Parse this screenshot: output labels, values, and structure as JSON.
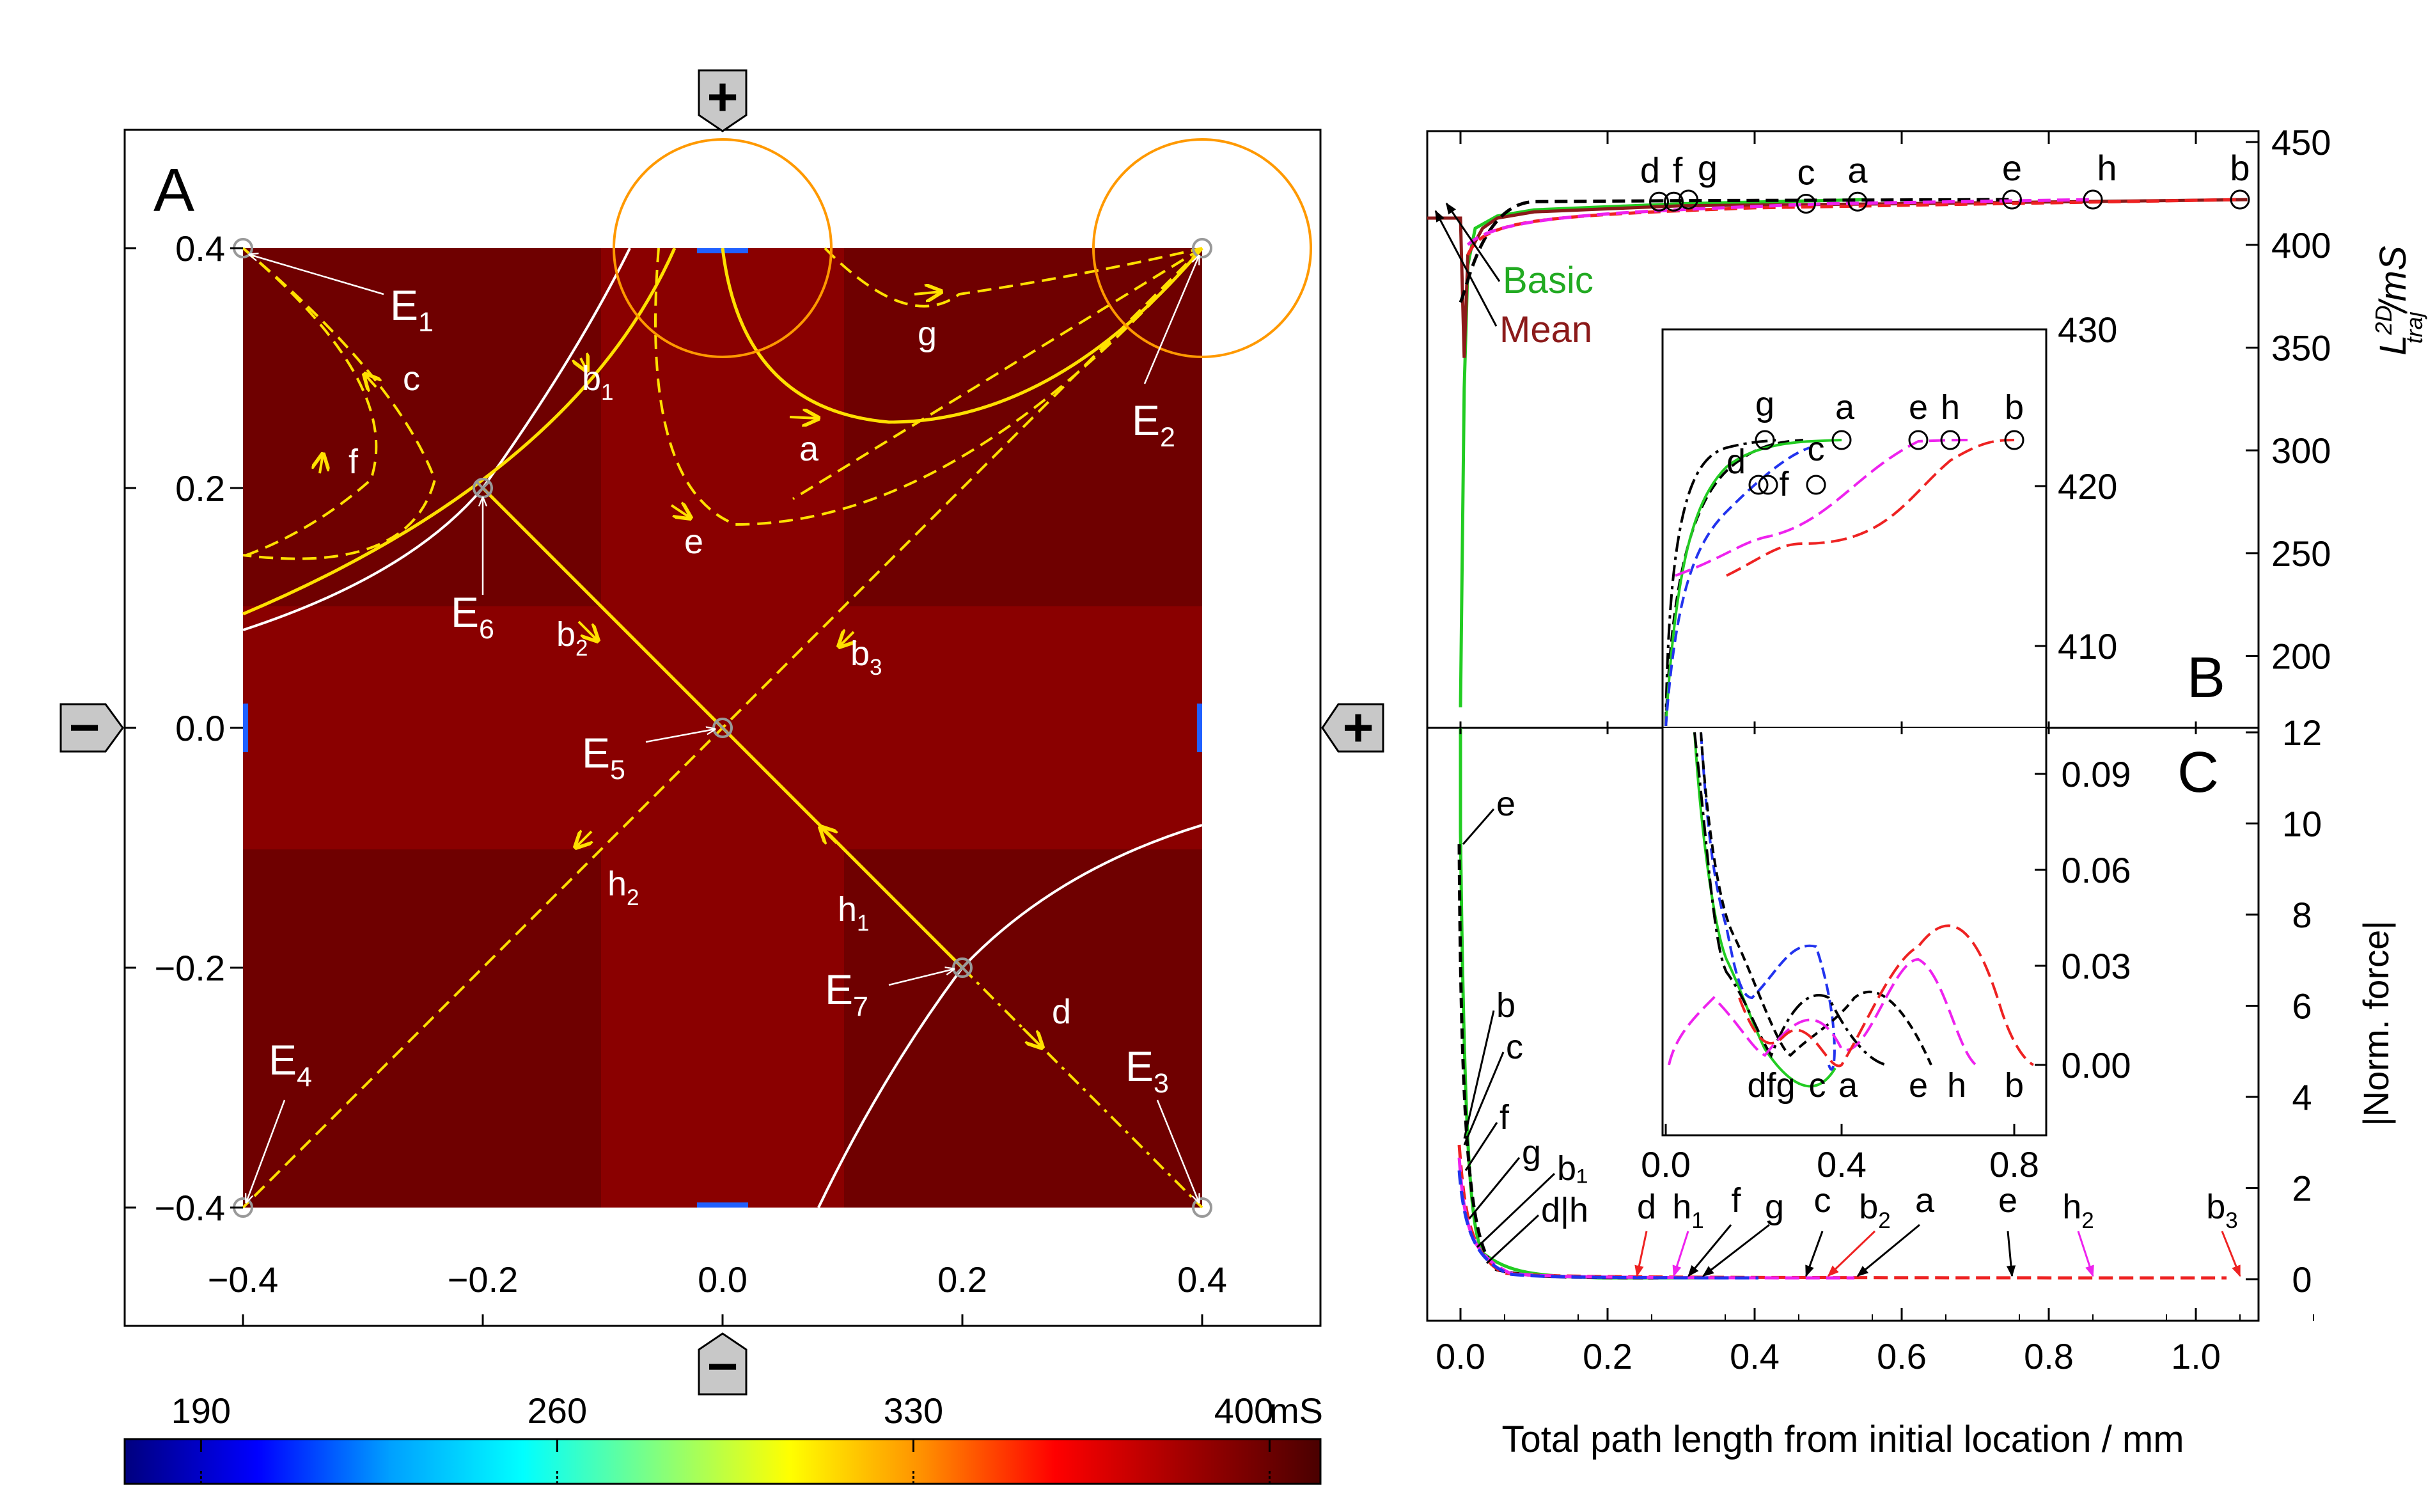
{
  "panel_a": {
    "label": "A",
    "electrode_top": "+",
    "electrode_right": "+",
    "electrode_left": "−",
    "electrode_bottom": "−",
    "x_ticks": [
      "−0.4",
      "−0.2",
      "0.0",
      "0.2",
      "0.4"
    ],
    "y_ticks": [
      "0.4",
      "0.2",
      "0.0",
      "−0.2",
      "−0.4"
    ],
    "points": [
      {
        "id": "E1",
        "main": "E",
        "sub": "1"
      },
      {
        "id": "E2",
        "main": "E",
        "sub": "2"
      },
      {
        "id": "E3",
        "main": "E",
        "sub": "3"
      },
      {
        "id": "E4",
        "main": "E",
        "sub": "4"
      },
      {
        "id": "E5",
        "main": "E",
        "sub": "5"
      },
      {
        "id": "E6",
        "main": "E",
        "sub": "6"
      },
      {
        "id": "E7",
        "main": "E",
        "sub": "7"
      }
    ],
    "trajectory_labels": [
      {
        "id": "a",
        "main": "a",
        "sub": ""
      },
      {
        "id": "b1",
        "main": "b",
        "sub": "1"
      },
      {
        "id": "b2",
        "main": "b",
        "sub": "2"
      },
      {
        "id": "b3",
        "main": "b",
        "sub": "3"
      },
      {
        "id": "c",
        "main": "c",
        "sub": ""
      },
      {
        "id": "d",
        "main": "d",
        "sub": ""
      },
      {
        "id": "e",
        "main": "e",
        "sub": ""
      },
      {
        "id": "f",
        "main": "f",
        "sub": ""
      },
      {
        "id": "g",
        "main": "g",
        "sub": ""
      },
      {
        "id": "h1",
        "main": "h",
        "sub": "1"
      },
      {
        "id": "h2",
        "main": "h",
        "sub": "2"
      }
    ]
  },
  "colorbar": {
    "ticks": [
      "190",
      "260",
      "330",
      "400"
    ],
    "unit": "mS",
    "stops": [
      "#00007f",
      "#0000ff",
      "#00a0ff",
      "#00ffff",
      "#80ff80",
      "#ffff00",
      "#ff9000",
      "#ff0000",
      "#a00000",
      "#4a0000"
    ]
  },
  "panel_b": {
    "label": "B",
    "y_ticks": [
      "200",
      "250",
      "300",
      "350",
      "400",
      "450"
    ],
    "y_axis_title": "L",
    "y_axis_sup": "2D",
    "y_axis_sub": "traj",
    "y_axis_unit": "/mS",
    "legend_basic": "Basic",
    "legend_mean": "Mean",
    "traj_labels": [
      "d",
      "f",
      "g",
      "c",
      "a",
      "e",
      "h",
      "b"
    ],
    "inset": {
      "y_ticks": [
        "410",
        "420",
        "430"
      ],
      "x_ticks": [
        "0.0",
        "0.4",
        "0.8"
      ],
      "traj_labels": [
        "g",
        "a",
        "e",
        "h",
        "b",
        "d",
        "f",
        "c"
      ]
    }
  },
  "panel_c": {
    "label": "C",
    "y_ticks": [
      "0",
      "2",
      "4",
      "6",
      "8",
      "10",
      "12"
    ],
    "y_axis_title": "|Norm. force|",
    "left_labels": [
      "e",
      "b",
      "c",
      "f",
      "g",
      "b₁",
      "d|h"
    ],
    "bottom_labels": [
      {
        "main": "d",
        "sub": ""
      },
      {
        "main": "h",
        "sub": "1"
      },
      {
        "main": "f",
        "sub": ""
      },
      {
        "main": "g",
        "sub": ""
      },
      {
        "main": "c",
        "sub": ""
      },
      {
        "main": "b",
        "sub": "2"
      },
      {
        "main": "a",
        "sub": ""
      },
      {
        "main": "e",
        "sub": ""
      },
      {
        "main": "h",
        "sub": "2"
      },
      {
        "main": "b",
        "sub": "3"
      }
    ],
    "inset": {
      "y_ticks": [
        "0.00",
        "0.03",
        "0.06",
        "0.09"
      ],
      "labels": [
        "dfg",
        "c",
        "a",
        "e",
        "h",
        "b"
      ]
    }
  },
  "x_axis": {
    "ticks": [
      "0.0",
      "0.2",
      "0.4",
      "0.6",
      "0.8",
      "1.0"
    ],
    "title": "Total path length from initial location / mm"
  },
  "colors": {
    "trajectory": "#ffe000",
    "basic": "#22cc22",
    "mean": "#8b1a1a",
    "black": "#000000",
    "red": "#ee2222",
    "blue": "#2233ee",
    "magenta": "#ee22ee",
    "circle": "#ff9900"
  },
  "chart_data": [
    {
      "type": "heatmap",
      "panel": "A",
      "xlim": [
        -0.4,
        0.4
      ],
      "ylim": [
        -0.4,
        0.4
      ],
      "colorbar_range": [
        190,
        400
      ],
      "points": [
        {
          "name": "E1",
          "x": -0.4,
          "y": 0.4
        },
        {
          "name": "E2",
          "x": 0.4,
          "y": 0.4
        },
        {
          "name": "E3",
          "x": 0.4,
          "y": -0.4
        },
        {
          "name": "E4",
          "x": -0.4,
          "y": -0.4
        },
        {
          "name": "E5",
          "x": 0.0,
          "y": 0.0
        },
        {
          "name": "E6",
          "x": -0.2,
          "y": 0.2
        },
        {
          "name": "E7",
          "x": 0.2,
          "y": -0.2
        }
      ]
    },
    {
      "type": "line",
      "panel": "B",
      "xlim": [
        -0.05,
        1.1
      ],
      "ylim": [
        165,
        455
      ],
      "series": [
        {
          "name": "Basic",
          "x": [
            0.0,
            0.005,
            0.01,
            0.02,
            0.05,
            0.1,
            0.3,
            0.55
          ],
          "y": [
            175,
            330,
            390,
            408,
            414,
            417,
            420,
            422
          ]
        },
        {
          "name": "Mean",
          "x": [
            -0.05,
            0.0,
            0.005,
            0.01,
            0.03,
            0.05,
            0.1,
            0.3,
            0.6,
            1.07
          ],
          "y": [
            413,
            413,
            345,
            395,
            408,
            413,
            416,
            419,
            420,
            422
          ]
        }
      ],
      "end_markers": [
        {
          "label": "d",
          "x": 0.27,
          "y": 421
        },
        {
          "label": "f",
          "x": 0.29,
          "y": 421
        },
        {
          "label": "g",
          "x": 0.31,
          "y": 422
        },
        {
          "label": "c",
          "x": 0.47,
          "y": 420
        },
        {
          "label": "a",
          "x": 0.54,
          "y": 421
        },
        {
          "label": "e",
          "x": 0.75,
          "y": 422
        },
        {
          "label": "h",
          "x": 0.86,
          "y": 422
        },
        {
          "label": "b",
          "x": 1.06,
          "y": 422
        }
      ]
    },
    {
      "type": "line",
      "panel": "C",
      "xlim": [
        -0.05,
        1.1
      ],
      "ylim": [
        -0.8,
        14.5
      ],
      "arrows_x": {
        "d": 0.24,
        "h1": 0.29,
        "f": 0.31,
        "g": 0.33,
        "c": 0.47,
        "b2": 0.5,
        "a": 0.54,
        "e": 0.75,
        "h2": 0.86,
        "b3": 1.06
      }
    }
  ]
}
